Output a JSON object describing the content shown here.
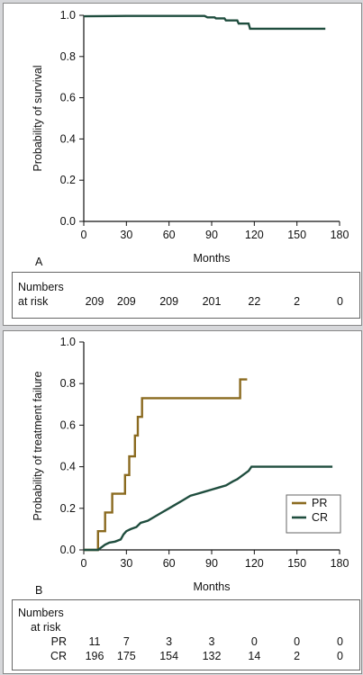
{
  "colors": {
    "survival": "#1f4d3e",
    "pr": "#8a6a1f",
    "cr": "#1f4d3e",
    "axis": "#111111",
    "background": "#d6d7da"
  },
  "panel_a": {
    "label": "A",
    "risk_header_line1": "Numbers",
    "risk_header_line2": "at risk",
    "risk_values": [
      "209",
      "209",
      "209",
      "201",
      "22",
      "2",
      "0"
    ]
  },
  "panel_b": {
    "label": "B",
    "risk_header_line1": "Numbers",
    "risk_header_line2": "at risk",
    "risk_rows": [
      {
        "label": "PR",
        "values": [
          "11",
          "7",
          "3",
          "3",
          "0",
          "0",
          "0"
        ]
      },
      {
        "label": "CR",
        "values": [
          "196",
          "175",
          "154",
          "132",
          "14",
          "2",
          "0"
        ]
      }
    ]
  },
  "chart_data": [
    {
      "type": "line",
      "step": true,
      "title": "",
      "xlabel": "Months",
      "ylabel": "Probability of survival",
      "xlim": [
        0,
        180
      ],
      "ylim": [
        0,
        1.0
      ],
      "xticks": [
        "0",
        "30",
        "60",
        "90",
        "120",
        "150",
        "180"
      ],
      "yticks": [
        "0.0",
        "0.2",
        "0.4",
        "0.6",
        "0.8",
        "1.0"
      ],
      "grid": false,
      "series": [
        {
          "color": "#1f4d3e",
          "points": [
            [
              0,
              0.995
            ],
            [
              30,
              0.997
            ],
            [
              60,
              0.997
            ],
            [
              85,
              0.997
            ],
            [
              87,
              0.99
            ],
            [
              92,
              0.99
            ],
            [
              93,
              0.985
            ],
            [
              99,
              0.985
            ],
            [
              100,
              0.975
            ],
            [
              108,
              0.975
            ],
            [
              109,
              0.96
            ],
            [
              116,
              0.96
            ],
            [
              117,
              0.935
            ],
            [
              170,
              0.935
            ]
          ]
        }
      ]
    },
    {
      "type": "line",
      "step": true,
      "title": "",
      "xlabel": "Months",
      "ylabel": "Probability of treatment failure",
      "xlim": [
        0,
        180
      ],
      "ylim": [
        0,
        1.0
      ],
      "xticks": [
        "0",
        "30",
        "60",
        "90",
        "120",
        "150",
        "180"
      ],
      "yticks": [
        "0.0",
        "0.2",
        "0.4",
        "0.6",
        "0.8",
        "1.0"
      ],
      "grid": false,
      "legend_position": "bottom-right",
      "series": [
        {
          "name": "PR",
          "color": "#8a6a1f",
          "points": [
            [
              0,
              0
            ],
            [
              10,
              0
            ],
            [
              10,
              0.09
            ],
            [
              15,
              0.09
            ],
            [
              15,
              0.18
            ],
            [
              20,
              0.18
            ],
            [
              20,
              0.27
            ],
            [
              29,
              0.27
            ],
            [
              29,
              0.36
            ],
            [
              32,
              0.36
            ],
            [
              32,
              0.45
            ],
            [
              36,
              0.45
            ],
            [
              36,
              0.55
            ],
            [
              38,
              0.55
            ],
            [
              38,
              0.64
            ],
            [
              41,
              0.64
            ],
            [
              41,
              0.73
            ],
            [
              110,
              0.73
            ],
            [
              110,
              0.82
            ],
            [
              115,
              0.82
            ]
          ]
        },
        {
          "name": "CR",
          "color": "#1f4d3e",
          "points": [
            [
              0,
              0
            ],
            [
              10,
              0
            ],
            [
              12,
              0.01
            ],
            [
              15,
              0.025
            ],
            [
              18,
              0.035
            ],
            [
              22,
              0.04
            ],
            [
              26,
              0.05
            ],
            [
              28,
              0.075
            ],
            [
              30,
              0.09
            ],
            [
              33,
              0.1
            ],
            [
              37,
              0.11
            ],
            [
              40,
              0.13
            ],
            [
              45,
              0.14
            ],
            [
              50,
              0.16
            ],
            [
              55,
              0.18
            ],
            [
              60,
              0.2
            ],
            [
              65,
              0.22
            ],
            [
              70,
              0.24
            ],
            [
              75,
              0.26
            ],
            [
              80,
              0.27
            ],
            [
              85,
              0.28
            ],
            [
              90,
              0.29
            ],
            [
              95,
              0.3
            ],
            [
              100,
              0.31
            ],
            [
              105,
              0.33
            ],
            [
              108,
              0.34
            ],
            [
              112,
              0.36
            ],
            [
              116,
              0.38
            ],
            [
              118,
              0.4
            ],
            [
              175,
              0.4
            ]
          ]
        }
      ]
    }
  ]
}
